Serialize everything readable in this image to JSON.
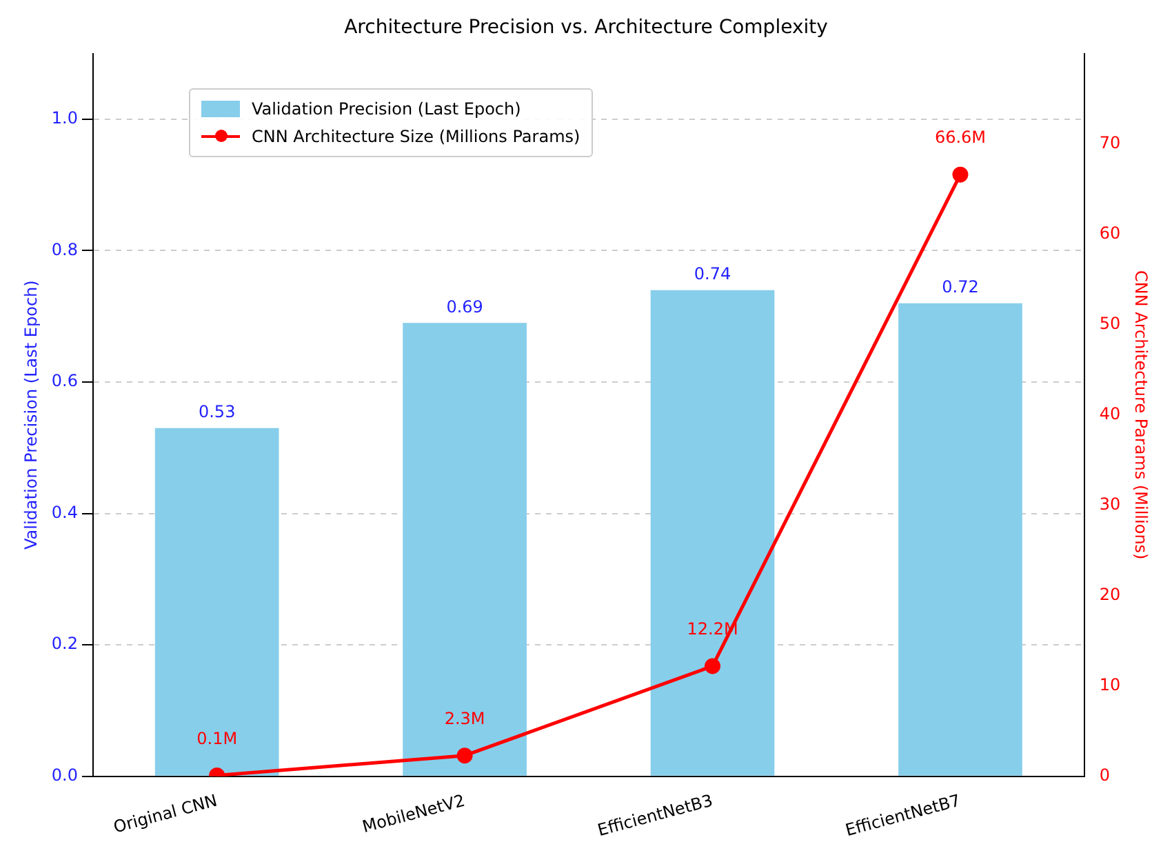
{
  "chart_data": {
    "type": "bar",
    "title": "Architecture Precision vs. Architecture Complexity",
    "ylabel": "Validation Precision (Last Epoch)",
    "y2label": "CNN Architecture Params (Millions)",
    "categories": [
      "Original CNN",
      "MobileNetV2",
      "EfficientNetB3",
      "EfficientNetB7"
    ],
    "series": [
      {
        "name": "Validation Precision (Last Epoch)",
        "color": "#87ceeb",
        "values": [
          0.53,
          0.69,
          0.74,
          0.72
        ],
        "value_labels": [
          "0.53",
          "0.69",
          "0.74",
          "0.72"
        ]
      },
      {
        "name": "CNN Architecture Size (Millions Params)",
        "type": "line",
        "axis": "y2",
        "color": "#ff0000",
        "marker": "circle",
        "values": [
          0.1,
          2.3,
          12.2,
          66.6
        ],
        "value_labels": [
          "0.1M",
          "2.3M",
          "12.2M",
          "66.6M"
        ]
      }
    ],
    "ylim": [
      0,
      1.1
    ],
    "yticks": [
      {
        "value": 0,
        "label": "0.0"
      },
      0.2,
      0.4,
      0.6,
      0.8,
      {
        "value": 1,
        "label": "1.0"
      }
    ],
    "y2lim": [
      0,
      80
    ],
    "y2ticks": [
      0,
      10,
      20,
      30,
      40,
      50,
      60,
      70
    ],
    "grid": "y",
    "legend": "top left"
  }
}
